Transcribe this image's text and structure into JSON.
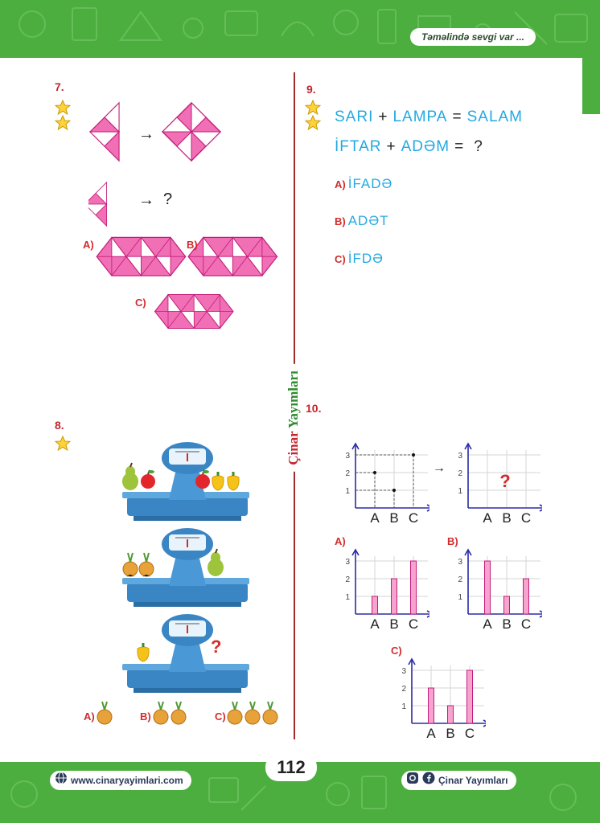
{
  "header": {
    "tagline": "Təməlində sevgi var ..."
  },
  "side_brand": {
    "part1": "Çinar",
    "part2": "Yayımları"
  },
  "page_number": "112",
  "footer": {
    "website": "www.cinaryayimlari.com",
    "social": "Çinar Yayımları"
  },
  "q7": {
    "number": "7.",
    "arrow": "→",
    "question_mark": "?",
    "options": [
      "A)",
      "B)",
      "C)"
    ]
  },
  "q8": {
    "number": "8.",
    "options": [
      "A)",
      "B)",
      "C)"
    ],
    "option_onion_counts": [
      1,
      2,
      3
    ],
    "question_mark": "?"
  },
  "q9": {
    "number": "9.",
    "line1": {
      "w1": "SARI",
      "op1": "+",
      "w2": "LAMPA",
      "op2": "=",
      "w3": "SALAM"
    },
    "line2": {
      "w1": "İFTAR",
      "op1": "+",
      "w2": "ADƏM",
      "op2": "=",
      "w3": "?"
    },
    "options": [
      {
        "label": "A)",
        "text": "İFADƏ"
      },
      {
        "label": "B)",
        "text": "ADƏT"
      },
      {
        "label": "C)",
        "text": "İFDƏ"
      }
    ]
  },
  "q10": {
    "number": "10.",
    "arrow": "→",
    "question_mark": "?",
    "options": [
      "A)",
      "B)",
      "C)"
    ],
    "chart_data": [
      {
        "type": "scatter",
        "categories": [
          "A",
          "B",
          "C"
        ],
        "values": [
          2,
          1,
          3
        ],
        "yticks": [
          "1",
          "2",
          "3"
        ],
        "ylim": [
          0,
          3
        ]
      },
      {
        "type": "scatter",
        "categories": [
          "A",
          "B",
          "C"
        ],
        "values": [],
        "yticks": [
          "1",
          "2",
          "3"
        ],
        "ylim": [
          0,
          3
        ],
        "annotation": "?"
      },
      {
        "type": "bar",
        "label": "A)",
        "categories": [
          "A",
          "B",
          "C"
        ],
        "values": [
          1,
          2,
          3
        ],
        "yticks": [
          "1",
          "2",
          "3"
        ],
        "ylim": [
          0,
          3
        ]
      },
      {
        "type": "bar",
        "label": "B)",
        "categories": [
          "A",
          "B",
          "C"
        ],
        "values": [
          3,
          1,
          2
        ],
        "yticks": [
          "1",
          "2",
          "3"
        ],
        "ylim": [
          0,
          3
        ]
      },
      {
        "type": "bar",
        "label": "C)",
        "categories": [
          "A",
          "B",
          "C"
        ],
        "values": [
          2,
          1,
          3
        ],
        "yticks": [
          "1",
          "2",
          "3"
        ],
        "ylim": [
          0,
          3
        ]
      }
    ]
  },
  "colors": {
    "green": "#4cae3e",
    "pink": "#f06fb5",
    "blue_text": "#23a9e1",
    "red": "#d42b2b",
    "scale_blue": "#3a86c4"
  }
}
